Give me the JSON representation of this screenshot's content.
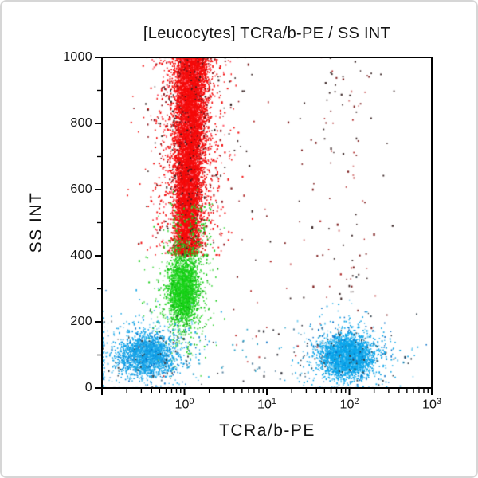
{
  "figure": {
    "title": "[Leucocytes] TCRa/b-PE / SS INT",
    "x_axis_label": "TCRa/b-PE",
    "y_axis_label": "SS INT"
  },
  "chart_data": {
    "type": "scatter",
    "subtype": "flow-cytometry-dot-plot",
    "title": "[Leucocytes] TCRa/b-PE / SS INT",
    "xlabel": "TCRa/b-PE",
    "ylabel": "SS INT",
    "x_scale": "log10",
    "x_range_log10": [
      -1,
      3
    ],
    "x_major_ticks": [
      {
        "base": "10",
        "exp": "0",
        "log10": 0
      },
      {
        "base": "10",
        "exp": "1",
        "log10": 1
      },
      {
        "base": "10",
        "exp": "2",
        "log10": 2
      },
      {
        "base": "10",
        "exp": "3",
        "log10": 3
      }
    ],
    "x_minor_tick_decades": [
      -1,
      0,
      1,
      2
    ],
    "y_scale": "linear",
    "ylim": [
      0,
      1000
    ],
    "y_major_ticks": [
      0,
      200,
      400,
      600,
      800,
      1000
    ],
    "y_minor_ticks": [
      100,
      300,
      500,
      700,
      900
    ],
    "grid": false,
    "legend": null,
    "populations": [
      {
        "name": "debris-high-ss-scatter",
        "shape": "sparse",
        "x_range_log10": [
          0.4,
          2.55
        ],
        "x_focus_log10": 1.95,
        "ss_range": [
          150,
          1010
        ],
        "count": 150,
        "colors": [
          "#3a2626",
          "#7c1d1d",
          "#b02a2a",
          "#d98a8a"
        ],
        "color_weights": [
          0.4,
          0.3,
          0.2,
          0.1
        ]
      },
      {
        "name": "granulocytes-band",
        "shape": "vertical-band",
        "x_center_log10_bottom": 0.02,
        "x_center_log10_top": 0.09,
        "x_sigma_log10": 0.075,
        "halo_sigma_log10": 0.22,
        "ss_range": [
          400,
          1080
        ],
        "clip_ss_max": 1000,
        "core_count": 9500,
        "halo_count": 1700,
        "core_colors": [
          "#f60909",
          "#e51212",
          "#ff4040"
        ],
        "core_color_weights": [
          0.9,
          0.07,
          0.03
        ],
        "halo_colors": [
          "#f21010",
          "#ff5a6a",
          "#8c1118",
          "#33201f"
        ],
        "halo_color_weights": [
          0.62,
          0.14,
          0.12,
          0.12
        ]
      },
      {
        "name": "monocytes-cluster",
        "shape": "cluster",
        "x_center_log10": -0.01,
        "x_sigma_log10": 0.08,
        "ss_center": 295,
        "ss_sigma": 45,
        "core_count": 2200,
        "halo_count": 700,
        "halo_mult": 2.1,
        "core_colors": [
          "#17d417",
          "#0cc50c",
          "#52e052"
        ],
        "core_color_weights": [
          0.7,
          0.15,
          0.15
        ],
        "halo_colors": [
          "#1ecf1e",
          "#6fe06f",
          "#0fae0f"
        ],
        "halo_color_weights": [
          0.6,
          0.25,
          0.15
        ]
      },
      {
        "name": "monocyte-green-fringe",
        "shape": "sparse",
        "x_range_log10": [
          -0.18,
          0.32
        ],
        "ss_range": [
          380,
          560
        ],
        "count": 120,
        "colors": [
          "#1ecf1e",
          "#4fdd4f",
          "#0fae0f"
        ],
        "color_weights": [
          0.5,
          0.3,
          0.2
        ]
      },
      {
        "name": "lymphocytes-tcr-negative",
        "shape": "cluster",
        "x_center_log10": -0.45,
        "x_sigma_log10": 0.16,
        "ss_center": 100,
        "ss_sigma": 30,
        "core_count": 1700,
        "halo_count": 480,
        "halo_mult": 2.1,
        "x_clamp_min_log10": -0.99,
        "core_colors": [
          "#13a3e9",
          "#0b8fdb",
          "#43bdf0"
        ],
        "core_color_weights": [
          0.68,
          0.16,
          0.16
        ],
        "halo_colors": [
          "#1ba5e5",
          "#7fd0f2",
          "#0b72c8",
          "#32404a"
        ],
        "halo_color_weights": [
          0.55,
          0.2,
          0.15,
          0.1
        ]
      },
      {
        "name": "lymphocytes-tcr-positive",
        "shape": "cluster",
        "x_center_log10": 1.97,
        "x_sigma_log10": 0.14,
        "ss_center": 98,
        "ss_sigma": 28,
        "core_count": 3000,
        "halo_count": 620,
        "halo_mult": 2.1,
        "core_colors": [
          "#0aa6ec",
          "#0598e0",
          "#3fbcf2"
        ],
        "core_color_weights": [
          0.7,
          0.15,
          0.15
        ],
        "halo_colors": [
          "#14a6e6",
          "#7fd0f2",
          "#0b72c8",
          "#32404a"
        ],
        "halo_color_weights": [
          0.55,
          0.2,
          0.15,
          0.1
        ]
      },
      {
        "name": "debris-low-ss",
        "shape": "sparse",
        "x_range_log10": [
          -0.6,
          1.75
        ],
        "ss_range": [
          20,
          190
        ],
        "count": 95,
        "colors": [
          "#5b84a0",
          "#3c3c44",
          "#2aa0c8",
          "#c03a3a"
        ],
        "color_weights": [
          0.35,
          0.3,
          0.25,
          0.1
        ]
      }
    ]
  },
  "style": {
    "frame_color": "#000000",
    "outer_border_color": "#d6d6d6",
    "background": "#ffffff",
    "text_color": "#131313"
  }
}
